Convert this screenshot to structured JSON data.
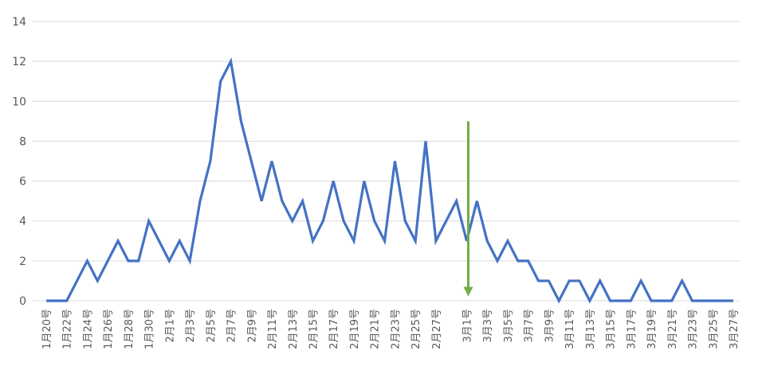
{
  "chart_data": {
    "type": "line",
    "x": [
      "1月20号",
      "1月21号",
      "1月22号",
      "1月23号",
      "1月24号",
      "1月25号",
      "1月26号",
      "1月27号",
      "1月28号",
      "1月29号",
      "1月30号",
      "1月31号",
      "2月1号",
      "2月2号",
      "2月3号",
      "2月4号",
      "2月5号",
      "2月6号",
      "2月7号",
      "2月8号",
      "2月9号",
      "2月10号",
      "2月11号",
      "2月12号",
      "2月13号",
      "2月14号",
      "2月15号",
      "2月16号",
      "2月17号",
      "2月18号",
      "2月19号",
      "2月20号",
      "2月21号",
      "2月22号",
      "2月23号",
      "2月24号",
      "2月25号",
      "2月26号",
      "2月27号",
      "2月28号",
      "2月29号",
      "3月1号",
      "3月2号",
      "3月3号",
      "3月4号",
      "3月5号",
      "3月6号",
      "3月7号",
      "3月8号",
      "3月9号",
      "3月10号",
      "3月11号",
      "3月12号",
      "3月13号",
      "3月14号",
      "3月15号",
      "3月16号",
      "3月17号",
      "3月18号",
      "3月19号",
      "3月20号",
      "3月21号",
      "3月22号",
      "3月23号",
      "3月24号",
      "3月25号",
      "3月26号",
      "3月27号"
    ],
    "x_tick_labels": [
      "1月20号",
      "1月22号",
      "1月24号",
      "1月26号",
      "1月28号",
      "1月30号",
      "2月1号",
      "2月3号",
      "2月5号",
      "2月7号",
      "2月9号",
      "2月11号",
      "2月13号",
      "2月15号",
      "2月17号",
      "2月19号",
      "2月21号",
      "2月23号",
      "2月25号",
      "2月27号",
      "3月1号",
      "3月3号",
      "3月5号",
      "3月7号",
      "3月9号",
      "3月11号",
      "3月13号",
      "3月15号",
      "3月17号",
      "3月19号",
      "3月21号",
      "3月23号",
      "3月25号",
      "3月27号"
    ],
    "series": [
      {
        "values": [
          0,
          0,
          0,
          1,
          2,
          1,
          2,
          3,
          2,
          2,
          4,
          3,
          2,
          3,
          2,
          5,
          7,
          11,
          12,
          9,
          7,
          5,
          7,
          5,
          4,
          5,
          3,
          4,
          6,
          4,
          3,
          6,
          4,
          3,
          7,
          4,
          3,
          8,
          3,
          4,
          5,
          3,
          5,
          3,
          2,
          3,
          2,
          2,
          1,
          1,
          0,
          1,
          1,
          0,
          1,
          0,
          0,
          0,
          1,
          0,
          0,
          0,
          1,
          0,
          0,
          0,
          0,
          0
        ],
        "color": "#4472C4"
      }
    ],
    "y_ticks": [
      "0",
      "2",
      "4",
      "6",
      "8",
      "10",
      "12",
      "14"
    ],
    "ylim": [
      0,
      14
    ],
    "grid": true,
    "legend": "none",
    "annotation": {
      "type": "arrow-down",
      "x": "3月1号",
      "y_start": 9,
      "y_end": 0.3,
      "color": "#70AD47"
    },
    "title": "",
    "xlabel": "",
    "ylabel": ""
  }
}
